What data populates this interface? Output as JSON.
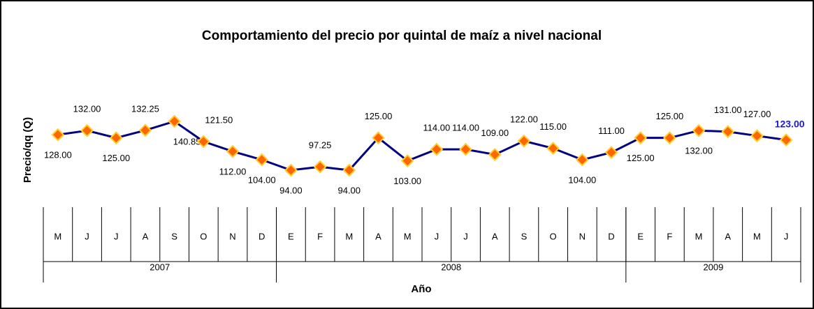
{
  "chart_data": {
    "type": "line",
    "title": "Comportamiento del precio por quintal  de maíz a nivel nacional",
    "y_label": "Precio/qq (Q)",
    "x_label": "Año",
    "categories": [
      "M",
      "J",
      "J",
      "A",
      "S",
      "O",
      "N",
      "D",
      "E",
      "F",
      "M",
      "A",
      "M",
      "J",
      "J",
      "A",
      "S",
      "O",
      "N",
      "D",
      "E",
      "F",
      "M",
      "A",
      "M",
      "J"
    ],
    "x_groups": [
      {
        "name": "2007",
        "count": 8
      },
      {
        "name": "2008",
        "count": 12
      },
      {
        "name": "2009",
        "count": 6
      }
    ],
    "series": [
      {
        "color": "#000080",
        "values": [
          128,
          132,
          125,
          132.25,
          140.85,
          121.5,
          112,
          104,
          94,
          97.25,
          94,
          125,
          103,
          114,
          114,
          109,
          122,
          115,
          104,
          111,
          125,
          125,
          132,
          131,
          127,
          123
        ],
        "value_labels": [
          "128.00",
          "132.00",
          "125.00",
          "132.25",
          "140.85",
          "121.50",
          "112.00",
          "104.00",
          "94.00",
          "97.25",
          "94.00",
          "125.00",
          "103.00",
          "114.00",
          "114.00",
          "109.00",
          "122.00",
          "115.00",
          "104.00",
          "111.00",
          "125.00",
          "125.00",
          "132.00",
          "131.00",
          "127.00",
          "123.00"
        ],
        "marker_color": "#ff6600",
        "marker_edge": "#ffcc33"
      }
    ]
  }
}
